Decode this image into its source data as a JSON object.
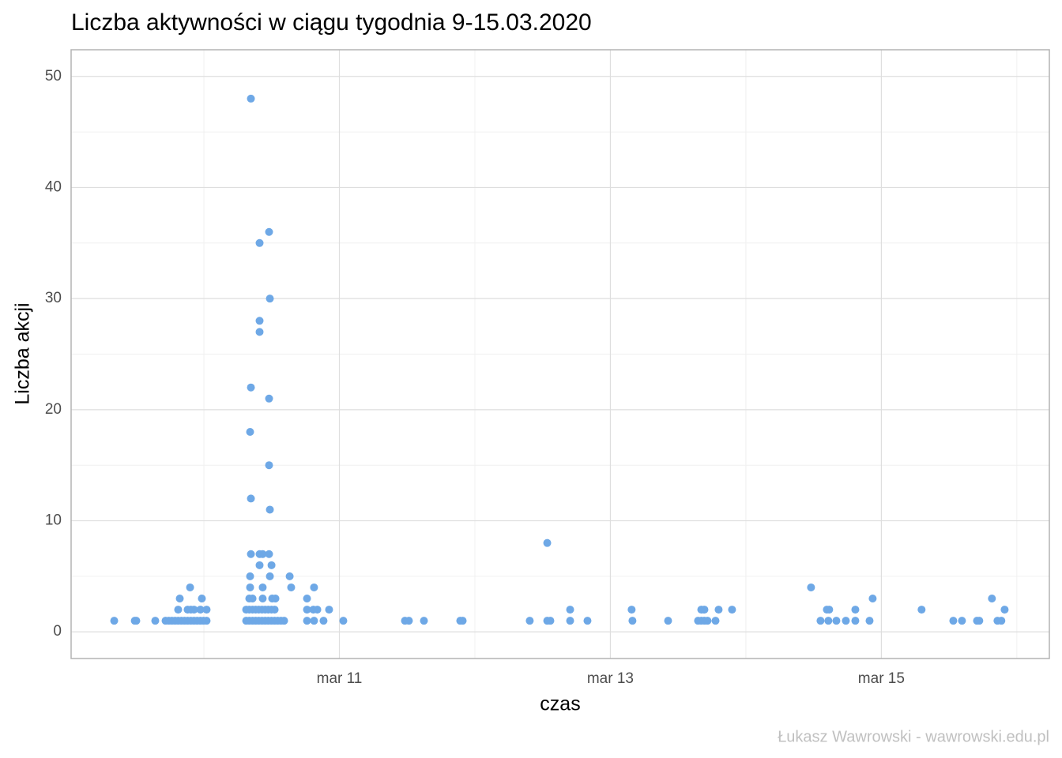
{
  "chart_data": {
    "type": "scatter",
    "title": "Liczba aktywności w ciągu tygodnia 9-15.03.2020",
    "x_label": "czas",
    "y_label": "Liczba akcji",
    "caption": "Łukasz Wawrowski - wawrowski.edu.pl",
    "color": "#6ea8e6",
    "grid": true,
    "xlim": [
      9.02,
      16.24
    ],
    "ylim": [
      -2.4,
      52.4
    ],
    "xticks": [
      {
        "value": 11,
        "label": "mar 11"
      },
      {
        "value": 13,
        "label": "mar 13"
      },
      {
        "value": 15,
        "label": "mar 15"
      }
    ],
    "yticks": [
      0,
      10,
      20,
      30,
      40,
      50
    ],
    "x": [
      9.338,
      9.49,
      9.501,
      9.641,
      9.717,
      9.741,
      9.764,
      9.787,
      9.81,
      9.834,
      9.857,
      9.88,
      9.904,
      9.927,
      9.95,
      9.974,
      9.997,
      10.02,
      9.81,
      9.88,
      9.904,
      9.927,
      9.974,
      10.02,
      9.822,
      9.985,
      9.898,
      10.347,
      10.347,
      10.341,
      10.347,
      10.347,
      10.411,
      10.434,
      10.481,
      10.341,
      10.487,
      10.341,
      10.434,
      10.335,
      10.359,
      10.434,
      10.504,
      10.528,
      10.411,
      10.411,
      10.411,
      10.481,
      10.487,
      10.481,
      10.481,
      10.487,
      10.411,
      10.499,
      10.312,
      10.335,
      10.359,
      10.382,
      10.405,
      10.429,
      10.452,
      10.475,
      10.499,
      10.522,
      10.545,
      10.569,
      10.592,
      10.312,
      10.335,
      10.359,
      10.382,
      10.405,
      10.429,
      10.452,
      10.475,
      10.499,
      10.522,
      10.633,
      10.644,
      10.761,
      10.761,
      10.761,
      10.813,
      10.808,
      10.837,
      10.813,
      10.883,
      10.924,
      11.029,
      11.484,
      11.513,
      11.624,
      11.892,
      11.91,
      12.405,
      12.534,
      12.534,
      12.557,
      12.703,
      12.703,
      12.831,
      13.157,
      13.163,
      13.426,
      13.647,
      13.671,
      13.694,
      13.671,
      13.694,
      13.717,
      13.776,
      13.799,
      13.898,
      14.481,
      14.551,
      14.598,
      14.615,
      14.609,
      14.668,
      14.738,
      14.808,
      14.808,
      14.913,
      14.936,
      15.297,
      15.531,
      15.595,
      15.706,
      15.723,
      15.816,
      15.857,
      15.886,
      15.91
    ],
    "values": [
      1,
      1,
      1,
      1,
      1,
      1,
      1,
      1,
      1,
      1,
      1,
      1,
      1,
      1,
      1,
      1,
      1,
      1,
      2,
      2,
      2,
      2,
      2,
      2,
      3,
      3,
      4,
      48,
      22,
      18,
      12,
      7,
      7,
      7,
      7,
      5,
      5,
      4,
      4,
      3,
      3,
      3,
      3,
      3,
      35,
      28,
      27,
      36,
      30,
      21,
      15,
      11,
      6,
      6,
      1,
      1,
      1,
      1,
      1,
      1,
      1,
      1,
      1,
      1,
      1,
      1,
      1,
      2,
      2,
      2,
      2,
      2,
      2,
      2,
      2,
      2,
      2,
      5,
      4,
      3,
      2,
      1,
      4,
      2,
      2,
      1,
      1,
      2,
      1,
      1,
      1,
      1,
      1,
      1,
      1,
      8,
      1,
      1,
      2,
      1,
      1,
      2,
      1,
      1,
      1,
      2,
      2,
      1,
      1,
      1,
      1,
      2,
      2,
      4,
      1,
      2,
      2,
      1,
      1,
      1,
      2,
      1,
      1,
      3,
      2,
      1,
      1,
      1,
      1,
      3,
      1,
      1,
      2
    ]
  }
}
